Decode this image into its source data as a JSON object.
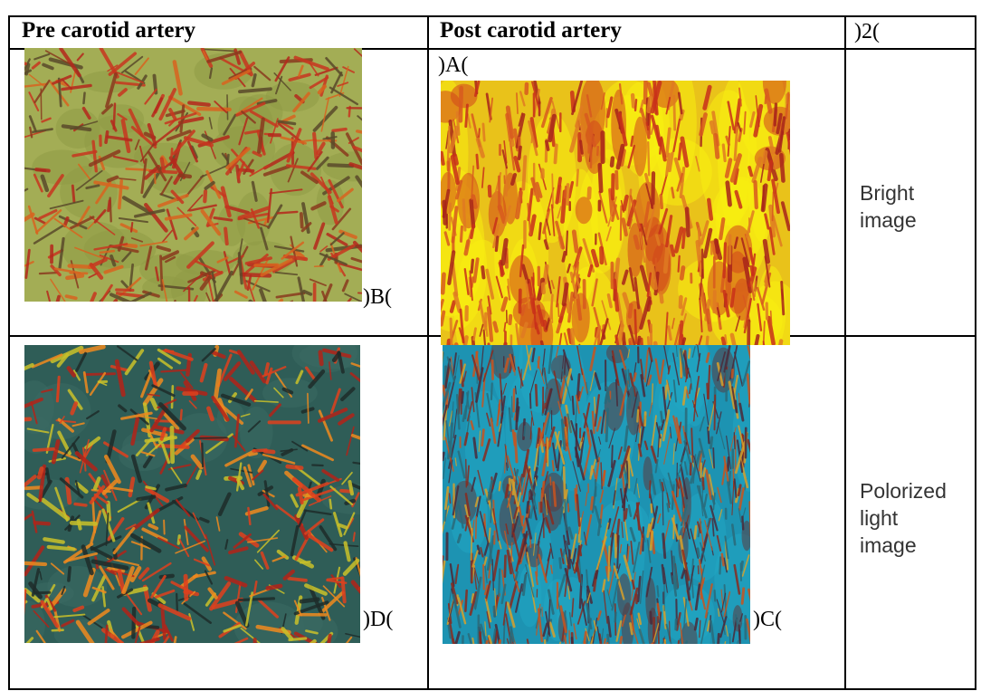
{
  "table": {
    "header": [
      "Pre carotid artery",
      "Post carotid artery",
      ")2("
    ],
    "rows": [
      [
        ")B(",
        ")A(",
        "Bright image"
      ],
      [
        ")D(",
        ")C(",
        "Polorized light image"
      ]
    ]
  }
}
